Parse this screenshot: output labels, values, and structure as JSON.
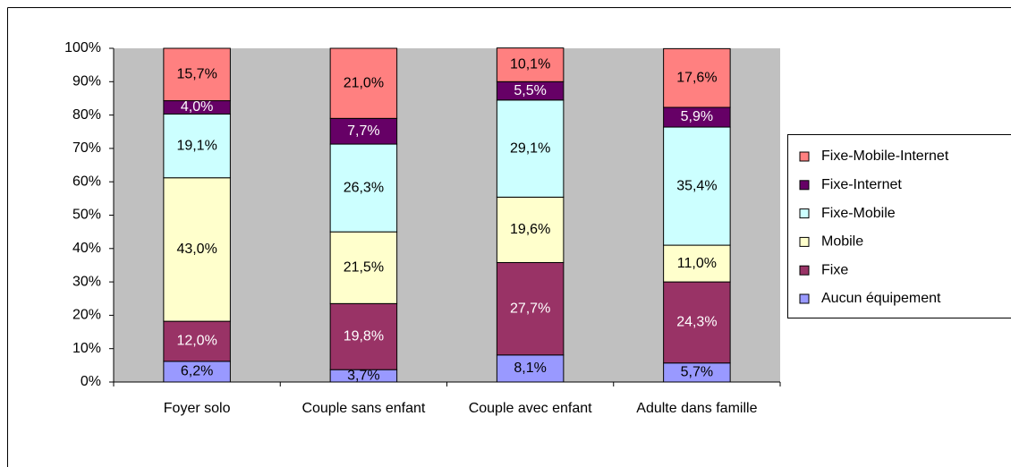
{
  "chart_data": {
    "type": "stacked_bar",
    "categories": [
      "Foyer solo",
      "Couple sans enfant",
      "Couple avec enfant",
      "Adulte dans famille"
    ],
    "series": [
      {
        "name": "Aucun équipement",
        "color": "#9999ff",
        "values": [
          6.2,
          3.7,
          8.1,
          5.7
        ],
        "value_labels": [
          "6,2%",
          "3,7%",
          "8,1%",
          "5,7%"
        ]
      },
      {
        "name": "Fixe",
        "color": "#993366",
        "values": [
          12.0,
          19.8,
          27.7,
          24.3
        ],
        "value_labels": [
          "12,0%",
          "19,8%",
          "27,7%",
          "24,3%"
        ]
      },
      {
        "name": "Mobile",
        "color": "#ffffcc",
        "values": [
          43.0,
          21.5,
          19.6,
          11.0
        ],
        "value_labels": [
          "43,0%",
          "21,5%",
          "19,6%",
          "11,0%"
        ]
      },
      {
        "name": "Fixe-Mobile",
        "color": "#ccffff",
        "values": [
          19.1,
          26.3,
          29.1,
          35.4
        ],
        "value_labels": [
          "19,1%",
          "26,3%",
          "29,1%",
          "35,4%"
        ]
      },
      {
        "name": "Fixe-Internet",
        "color": "#660066",
        "values": [
          4.0,
          7.7,
          5.5,
          5.9
        ],
        "value_labels": [
          "4,0%",
          "7,7%",
          "5,5%",
          "5,9%"
        ]
      },
      {
        "name": "Fixe-Mobile-Internet",
        "color": "#ff8080",
        "values": [
          15.7,
          21.0,
          10.1,
          17.6
        ],
        "value_labels": [
          "15,7%",
          "21,0%",
          "10,1%",
          "17,6%"
        ]
      }
    ],
    "ylim": [
      0,
      100
    ],
    "yticks": [
      {
        "value": 0,
        "label": "0%"
      },
      {
        "value": 10,
        "label": "10%"
      },
      {
        "value": 20,
        "label": "20%"
      },
      {
        "value": 30,
        "label": "30%"
      },
      {
        "value": 40,
        "label": "40%"
      },
      {
        "value": 50,
        "label": "50%"
      },
      {
        "value": 60,
        "label": "60%"
      },
      {
        "value": 70,
        "label": "70%"
      },
      {
        "value": 80,
        "label": "80%"
      },
      {
        "value": 90,
        "label": "90%"
      },
      {
        "value": 100,
        "label": "100%"
      }
    ],
    "plot_background": "#c0c0c0",
    "grid": false,
    "legend": "right"
  }
}
